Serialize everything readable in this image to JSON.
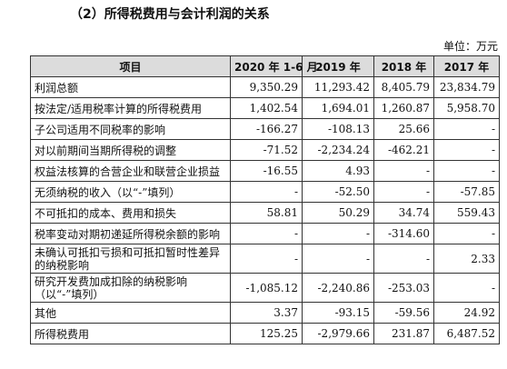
{
  "title": "（2）所得税费用与会计利润的关系",
  "unit": "单位：万元",
  "table": {
    "headers": [
      "项目",
      "2020 年 1-6 月",
      "2019 年",
      "2018 年",
      "2017 年"
    ],
    "rows": [
      {
        "label": "利润总额",
        "values": [
          "9,350.29",
          "11,293.42",
          "8,405.79",
          "23,834.79"
        ]
      },
      {
        "label": "按法定/适用税率计算的所得税费用",
        "values": [
          "1,402.54",
          "1,694.01",
          "1,260.87",
          "5,958.70"
        ]
      },
      {
        "label": "子公司适用不同税率的影响",
        "values": [
          "-166.27",
          "-108.13",
          "25.66",
          "-"
        ]
      },
      {
        "label": "对以前期间当期所得税的调整",
        "values": [
          "-71.52",
          "-2,234.24",
          "-462.21",
          "-"
        ]
      },
      {
        "label": "权益法核算的合营企业和联营企业损益",
        "values": [
          "-16.55",
          "4.93",
          "-",
          "-"
        ]
      },
      {
        "label": "无须纳税的收入（以“-”填列）",
        "values": [
          "-",
          "-52.50",
          "-",
          "-57.85"
        ]
      },
      {
        "label": "不可抵扣的成本、费用和损失",
        "values": [
          "58.81",
          "50.29",
          "34.74",
          "559.43"
        ]
      },
      {
        "label": "税率变动对期初递延所得税余额的影响",
        "values": [
          "-",
          "-",
          "-314.60",
          "-"
        ]
      },
      {
        "label": "未确认可抵扣亏损和可抵扣暂时性差异的纳税影响",
        "values": [
          "-",
          "-",
          "-",
          "2.33"
        ]
      },
      {
        "label": "研究开发费加成扣除的纳税影响（以“-”填列）",
        "values": [
          "-1,085.12",
          "-2,240.86",
          "-253.03",
          "-"
        ]
      },
      {
        "label": "其他",
        "values": [
          "3.37",
          "-93.15",
          "-59.56",
          "24.92"
        ]
      },
      {
        "label": "所得税费用",
        "values": [
          "125.25",
          "-2,979.66",
          "231.87",
          "6,487.52"
        ]
      }
    ]
  }
}
